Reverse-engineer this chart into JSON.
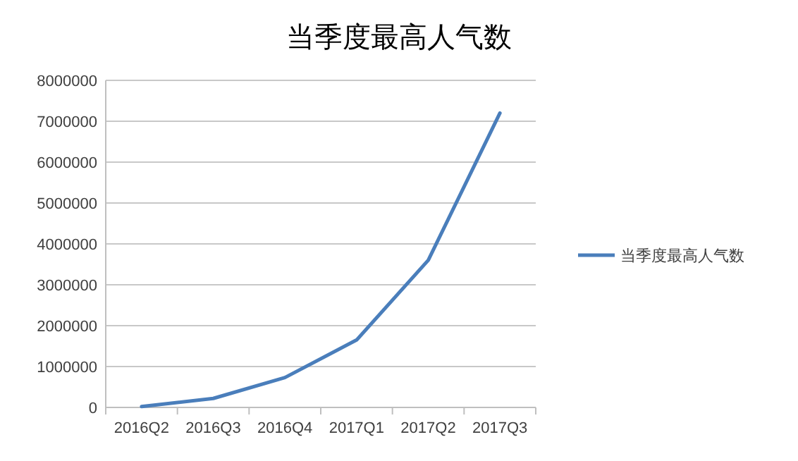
{
  "chart_data": {
    "type": "line",
    "title": "当季度最高人气数",
    "categories": [
      "2016Q2",
      "2016Q3",
      "2016Q4",
      "2017Q1",
      "2017Q2",
      "2017Q3"
    ],
    "series": [
      {
        "name": "当季度最高人气数",
        "color": "#4a7ebb",
        "values": [
          20000,
          220000,
          730000,
          1650000,
          3600000,
          7200000
        ]
      }
    ],
    "ylim": [
      0,
      8000000
    ],
    "yticks": [
      0,
      1000000,
      2000000,
      3000000,
      4000000,
      5000000,
      6000000,
      7000000,
      8000000
    ],
    "grid": "y",
    "legend": "right",
    "marker": "none"
  }
}
